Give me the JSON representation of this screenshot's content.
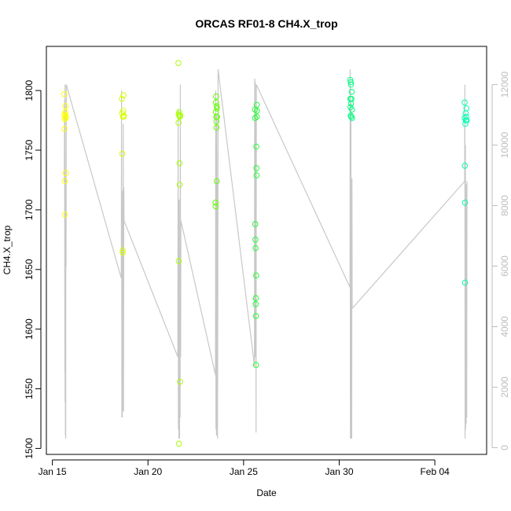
{
  "chart_data": {
    "type": "scatter",
    "title": "ORCAS RF01-8 CH4.X_trop",
    "xlabel": "Date",
    "ylabel": "CH4.X_trop",
    "x_ticks": [
      {
        "date": "2016-01-15",
        "label": "Jan 15"
      },
      {
        "date": "2016-01-20",
        "label": "Jan 20"
      },
      {
        "date": "2016-01-25",
        "label": "Jan 25"
      },
      {
        "date": "2016-01-30",
        "label": "Jan 30"
      },
      {
        "date": "2016-02-04",
        "label": "Feb 04"
      }
    ],
    "xlim": [
      "2016-01-14T16:30",
      "2016-02-06T17:00"
    ],
    "ylim": [
      1495,
      1837
    ],
    "y_ticks": [
      1500,
      1550,
      1600,
      1650,
      1700,
      1750,
      1800
    ],
    "y2_ticks": [
      0,
      2000,
      4000,
      6000,
      8000,
      10000,
      12000
    ],
    "y2lim": [
      -222,
      13262
    ],
    "grid": false,
    "colors": {
      "line": "#c8c8c8",
      "axis": "#000000",
      "axis_right": "#bdbdbd",
      "flight_colors": [
        "#ffff00",
        "#d8ff00",
        "#a8ff00",
        "#66ff00",
        "#22ff33",
        "#00ff80",
        "#00ffb0",
        "#00ffd0"
      ]
    },
    "altitude_series": [
      {
        "flight": 1,
        "points": [
          [
            "2016-01-15T15:00",
            8800
          ],
          [
            "2016-01-15T15:20",
            11500
          ],
          [
            "2016-01-15T15:40",
            2500
          ],
          [
            "2016-01-15T15:50",
            12000
          ],
          [
            "2016-01-15T16:00",
            1500
          ],
          [
            "2016-01-15T16:10",
            6000
          ],
          [
            "2016-01-15T16:20",
            400
          ],
          [
            "2016-01-15T16:35",
            8800
          ],
          [
            "2016-01-15T16:45",
            300
          ],
          [
            "2016-01-15T17:00",
            8900
          ],
          [
            "2016-01-15T17:15",
            6000
          ],
          [
            "2016-01-15T17:30",
            12000
          ]
        ]
      },
      {
        "flight": 2,
        "points": [
          [
            "2016-01-18T14:30",
            5600
          ],
          [
            "2016-01-18T14:50",
            11800
          ],
          [
            "2016-01-18T15:10",
            1000
          ],
          [
            "2016-01-18T15:30",
            6000
          ],
          [
            "2016-01-18T15:50",
            1000
          ],
          [
            "2016-01-18T16:10",
            8500
          ],
          [
            "2016-01-18T16:30",
            1200
          ],
          [
            "2016-01-18T17:00",
            10700
          ],
          [
            "2016-01-18T17:20",
            1200
          ],
          [
            "2016-01-18T17:40",
            8600
          ],
          [
            "2016-01-18T18:00",
            7500
          ]
        ]
      },
      {
        "flight": 3,
        "points": [
          [
            "2016-01-21T13:30",
            3000
          ],
          [
            "2016-01-21T13:50",
            11200
          ],
          [
            "2016-01-21T14:10",
            600
          ],
          [
            "2016-01-21T14:30",
            8000
          ],
          [
            "2016-01-21T14:50",
            300
          ],
          [
            "2016-01-21T15:10",
            8200
          ],
          [
            "2016-01-21T15:40",
            300
          ],
          [
            "2016-01-21T16:00",
            3700
          ],
          [
            "2016-01-21T16:20",
            1000
          ],
          [
            "2016-01-21T16:40",
            12000
          ],
          [
            "2016-01-21T17:00",
            3000
          ],
          [
            "2016-01-21T17:20",
            7500
          ]
        ]
      },
      {
        "flight": 4,
        "points": [
          [
            "2016-01-23T12:45",
            2400
          ],
          [
            "2016-01-23T13:00",
            11800
          ],
          [
            "2016-01-23T13:20",
            600
          ],
          [
            "2016-01-23T13:40",
            8000
          ],
          [
            "2016-01-23T14:00",
            400
          ],
          [
            "2016-01-23T14:20",
            11000
          ],
          [
            "2016-01-23T14:40",
            400
          ],
          [
            "2016-01-23T15:00",
            8800
          ],
          [
            "2016-01-23T15:20",
            300
          ],
          [
            "2016-01-23T15:40",
            5000
          ],
          [
            "2016-01-23T16:00",
            12500
          ]
        ]
      },
      {
        "flight": 5,
        "points": [
          [
            "2016-01-25T13:40",
            2700
          ],
          [
            "2016-01-25T14:00",
            12200
          ],
          [
            "2016-01-25T14:20",
            3000
          ],
          [
            "2016-01-25T14:40",
            12100
          ],
          [
            "2016-01-25T15:00",
            3000
          ],
          [
            "2016-01-25T15:20",
            11000
          ],
          [
            "2016-01-25T15:40",
            500
          ],
          [
            "2016-01-25T16:00",
            12000
          ]
        ]
      },
      {
        "flight": 6,
        "points": [
          [
            "2016-01-30T13:30",
            5300
          ],
          [
            "2016-01-30T13:45",
            12500
          ],
          [
            "2016-01-30T14:00",
            300
          ],
          [
            "2016-01-30T14:15",
            11800
          ],
          [
            "2016-01-30T14:30",
            400
          ],
          [
            "2016-01-30T14:45",
            11500
          ],
          [
            "2016-01-30T15:00",
            300
          ],
          [
            "2016-01-30T15:20",
            8800
          ],
          [
            "2016-01-30T15:40",
            300
          ],
          [
            "2016-01-30T16:00",
            8900
          ],
          [
            "2016-01-30T16:20",
            4600
          ]
        ]
      },
      {
        "flight": 7,
        "points": [
          [
            "2016-02-05T13:20",
            8800
          ],
          [
            "2016-02-05T13:40",
            12000
          ],
          [
            "2016-02-05T14:00",
            300
          ],
          [
            "2016-02-05T14:20",
            10000
          ],
          [
            "2016-02-05T14:40",
            600
          ],
          [
            "2016-02-05T15:00",
            4300
          ],
          [
            "2016-02-05T15:20",
            800
          ],
          [
            "2016-02-05T15:40",
            8700
          ],
          [
            "2016-02-05T16:00",
            1000
          ],
          [
            "2016-02-05T16:20",
            8800
          ]
        ]
      }
    ],
    "ch4_points": [
      {
        "flight": 1,
        "x": "2016-01-15T15:00",
        "y": 1797
      },
      {
        "flight": 1,
        "x": "2016-01-15T15:10",
        "y": 1780
      },
      {
        "flight": 1,
        "x": "2016-01-15T15:20",
        "y": 1768
      },
      {
        "flight": 1,
        "x": "2016-01-15T15:30",
        "y": 1776
      },
      {
        "flight": 1,
        "x": "2016-01-15T15:40",
        "y": 1724
      },
      {
        "flight": 1,
        "x": "2016-01-15T15:50",
        "y": 1696
      },
      {
        "flight": 1,
        "x": "2016-01-15T16:10",
        "y": 1779
      },
      {
        "flight": 1,
        "x": "2016-01-15T16:20",
        "y": 1782
      },
      {
        "flight": 1,
        "x": "2016-01-15T16:30",
        "y": 1787
      },
      {
        "flight": 1,
        "x": "2016-01-15T16:40",
        "y": 1777
      },
      {
        "flight": 1,
        "x": "2016-01-15T16:50",
        "y": 1731
      },
      {
        "flight": 1,
        "x": "2016-01-15T17:00",
        "y": 1778
      },
      {
        "flight": 2,
        "x": "2016-01-18T15:10",
        "y": 1793
      },
      {
        "flight": 2,
        "x": "2016-01-18T15:30",
        "y": 1781
      },
      {
        "flight": 2,
        "x": "2016-01-18T15:50",
        "y": 1747
      },
      {
        "flight": 2,
        "x": "2016-01-18T16:10",
        "y": 1666
      },
      {
        "flight": 2,
        "x": "2016-01-18T16:20",
        "y": 1664
      },
      {
        "flight": 2,
        "x": "2016-01-18T16:40",
        "y": 1778
      },
      {
        "flight": 2,
        "x": "2016-01-18T17:00",
        "y": 1783
      },
      {
        "flight": 2,
        "x": "2016-01-18T17:20",
        "y": 1796
      },
      {
        "flight": 2,
        "x": "2016-01-18T17:30",
        "y": 1778
      },
      {
        "flight": 2,
        "x": "2016-01-18T17:40",
        "y": 1779
      },
      {
        "flight": 3,
        "x": "2016-01-21T14:10",
        "y": 1823
      },
      {
        "flight": 3,
        "x": "2016-01-21T14:20",
        "y": 1773
      },
      {
        "flight": 3,
        "x": "2016-01-21T14:30",
        "y": 1780
      },
      {
        "flight": 3,
        "x": "2016-01-21T14:40",
        "y": 1657
      },
      {
        "flight": 3,
        "x": "2016-01-21T14:50",
        "y": 1504
      },
      {
        "flight": 3,
        "x": "2016-01-21T15:10",
        "y": 1782
      },
      {
        "flight": 3,
        "x": "2016-01-21T15:20",
        "y": 1779
      },
      {
        "flight": 3,
        "x": "2016-01-21T15:40",
        "y": 1739
      },
      {
        "flight": 3,
        "x": "2016-01-21T15:50",
        "y": 1721
      },
      {
        "flight": 3,
        "x": "2016-01-21T16:00",
        "y": 1778
      },
      {
        "flight": 3,
        "x": "2016-01-21T16:20",
        "y": 1556
      },
      {
        "flight": 3,
        "x": "2016-01-21T16:40",
        "y": 1779
      },
      {
        "flight": 4,
        "x": "2016-01-23T12:50",
        "y": 1706
      },
      {
        "flight": 4,
        "x": "2016-01-23T13:00",
        "y": 1703
      },
      {
        "flight": 4,
        "x": "2016-01-23T13:10",
        "y": 1782
      },
      {
        "flight": 4,
        "x": "2016-01-23T13:20",
        "y": 1790
      },
      {
        "flight": 4,
        "x": "2016-01-23T13:30",
        "y": 1795
      },
      {
        "flight": 4,
        "x": "2016-01-23T13:40",
        "y": 1778
      },
      {
        "flight": 4,
        "x": "2016-01-23T13:50",
        "y": 1774
      },
      {
        "flight": 4,
        "x": "2016-01-23T14:00",
        "y": 1769
      },
      {
        "flight": 4,
        "x": "2016-01-23T14:10",
        "y": 1787
      },
      {
        "flight": 4,
        "x": "2016-01-23T14:20",
        "y": 1724
      },
      {
        "flight": 4,
        "x": "2016-01-23T14:30",
        "y": 1785
      },
      {
        "flight": 4,
        "x": "2016-01-23T14:40",
        "y": 1778
      },
      {
        "flight": 5,
        "x": "2016-01-25T14:20",
        "y": 1784
      },
      {
        "flight": 5,
        "x": "2016-01-25T14:30",
        "y": 1777
      },
      {
        "flight": 5,
        "x": "2016-01-25T14:40",
        "y": 1688
      },
      {
        "flight": 5,
        "x": "2016-01-25T14:50",
        "y": 1675
      },
      {
        "flight": 5,
        "x": "2016-01-25T15:00",
        "y": 1668
      },
      {
        "flight": 5,
        "x": "2016-01-25T15:10",
        "y": 1621
      },
      {
        "flight": 5,
        "x": "2016-01-25T15:20",
        "y": 1626
      },
      {
        "flight": 5,
        "x": "2016-01-25T15:30",
        "y": 1611
      },
      {
        "flight": 5,
        "x": "2016-01-25T15:40",
        "y": 1570
      },
      {
        "flight": 5,
        "x": "2016-01-25T15:50",
        "y": 1645
      },
      {
        "flight": 5,
        "x": "2016-01-25T16:00",
        "y": 1753
      },
      {
        "flight": 5,
        "x": "2016-01-25T16:10",
        "y": 1735
      },
      {
        "flight": 5,
        "x": "2016-01-25T16:20",
        "y": 1729
      },
      {
        "flight": 5,
        "x": "2016-01-25T16:30",
        "y": 1788
      },
      {
        "flight": 5,
        "x": "2016-01-25T16:40",
        "y": 1778
      },
      {
        "flight": 5,
        "x": "2016-01-25T16:50",
        "y": 1783
      },
      {
        "flight": 6,
        "x": "2016-01-30T13:50",
        "y": 1809
      },
      {
        "flight": 6,
        "x": "2016-01-30T14:00",
        "y": 1793
      },
      {
        "flight": 6,
        "x": "2016-01-30T14:10",
        "y": 1786
      },
      {
        "flight": 6,
        "x": "2016-01-30T14:20",
        "y": 1779
      },
      {
        "flight": 6,
        "x": "2016-01-30T14:30",
        "y": 1807
      },
      {
        "flight": 6,
        "x": "2016-01-30T14:40",
        "y": 1805
      },
      {
        "flight": 6,
        "x": "2016-01-30T14:50",
        "y": 1789
      },
      {
        "flight": 6,
        "x": "2016-01-30T15:00",
        "y": 1778
      },
      {
        "flight": 6,
        "x": "2016-01-30T15:20",
        "y": 1793
      },
      {
        "flight": 6,
        "x": "2016-01-30T15:40",
        "y": 1799
      },
      {
        "flight": 6,
        "x": "2016-01-30T16:00",
        "y": 1784
      },
      {
        "flight": 6,
        "x": "2016-01-30T16:10",
        "y": 1777
      },
      {
        "flight": 7,
        "x": "2016-02-05T13:20",
        "y": 1790
      },
      {
        "flight": 7,
        "x": "2016-02-05T13:30",
        "y": 1777
      },
      {
        "flight": 7,
        "x": "2016-02-05T13:40",
        "y": 1737
      },
      {
        "flight": 7,
        "x": "2016-02-05T13:50",
        "y": 1706
      },
      {
        "flight": 7,
        "x": "2016-02-05T14:00",
        "y": 1639
      },
      {
        "flight": 7,
        "x": "2016-02-05T14:20",
        "y": 1772
      },
      {
        "flight": 7,
        "x": "2016-02-05T14:40",
        "y": 1781
      },
      {
        "flight": 7,
        "x": "2016-02-05T15:00",
        "y": 1775
      },
      {
        "flight": 7,
        "x": "2016-02-05T15:20",
        "y": 1778
      },
      {
        "flight": 7,
        "x": "2016-02-05T15:40",
        "y": 1785
      },
      {
        "flight": 7,
        "x": "2016-02-05T16:00",
        "y": 1775
      }
    ]
  }
}
